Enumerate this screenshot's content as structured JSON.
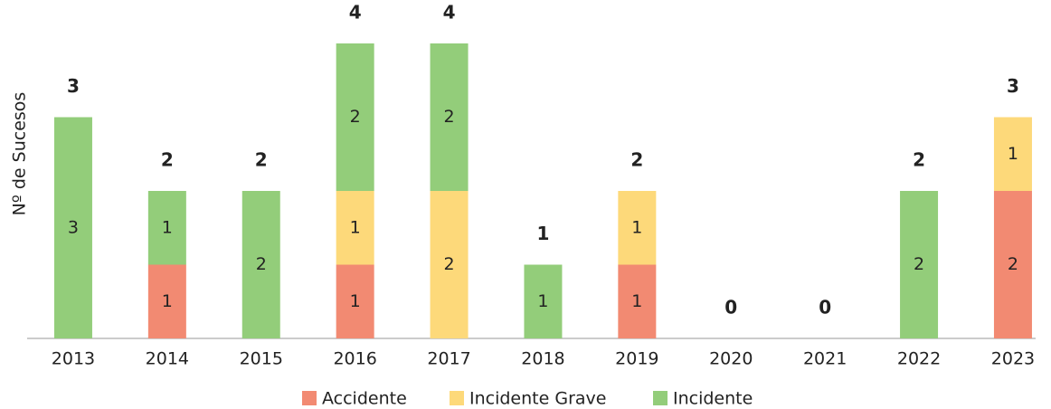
{
  "chart_data": {
    "type": "stacked_bar",
    "y_label": "Nº de Sucesos",
    "categories": [
      "2013",
      "2014",
      "2015",
      "2016",
      "2017",
      "2018",
      "2019",
      "2020",
      "2021",
      "2022",
      "2023"
    ],
    "series": [
      {
        "name": "Accidente",
        "color": "#f28a72",
        "values": [
          0,
          1,
          0,
          1,
          0,
          0,
          1,
          0,
          0,
          0,
          2
        ]
      },
      {
        "name": "Incidente Grave",
        "color": "#fdd97a",
        "values": [
          0,
          0,
          0,
          1,
          2,
          0,
          1,
          0,
          0,
          0,
          1
        ]
      },
      {
        "name": "Incidente",
        "color": "#93cd7a",
        "values": [
          3,
          1,
          2,
          2,
          2,
          1,
          0,
          0,
          0,
          2,
          0
        ]
      }
    ],
    "totals": [
      3,
      2,
      2,
      4,
      4,
      1,
      2,
      0,
      0,
      2,
      3
    ],
    "ylim": [
      0,
      4
    ],
    "legend": "bottom"
  }
}
